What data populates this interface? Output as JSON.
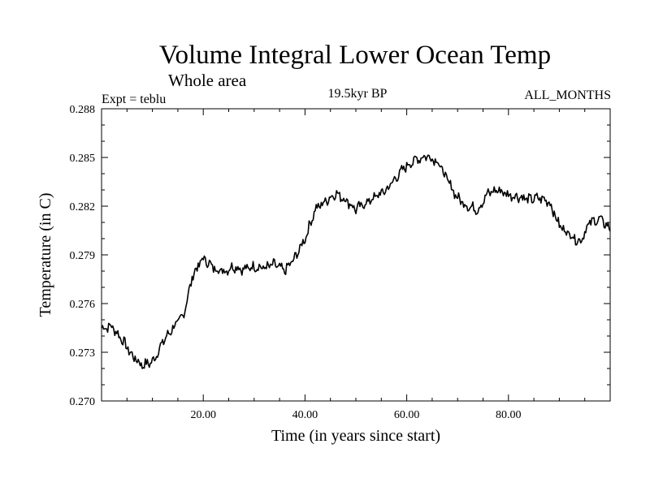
{
  "chart_data": {
    "type": "line",
    "title": "Volume Integral Lower Ocean Temp",
    "subtitle": "Whole area",
    "experiment_label": "Expt = teblu",
    "period_label": "19.5kyr BP",
    "months_label": "ALL_MONTHS",
    "xlabel": "Time (in years since start)",
    "ylabel": "Temperature (in C)",
    "xlim": [
      0,
      100
    ],
    "ylim": [
      0.27,
      0.288
    ],
    "xticks": [
      20,
      40,
      60,
      80
    ],
    "xtick_labels": [
      "20.00",
      "40.00",
      "60.00",
      "80.00"
    ],
    "yticks": [
      0.27,
      0.273,
      0.276,
      0.279,
      0.282,
      0.285,
      0.288
    ],
    "ytick_labels": [
      "0.270",
      "0.273",
      "0.276",
      "0.279",
      "0.282",
      "0.285",
      "0.288"
    ],
    "grid": false,
    "series": [
      {
        "name": "Volume integral lower ocean temperature",
        "x": [
          0,
          2,
          4,
          6,
          8,
          10,
          12,
          14,
          16,
          18,
          20,
          22,
          24,
          26,
          28,
          30,
          32,
          34,
          36,
          38,
          40,
          42,
          44,
          46,
          48,
          50,
          52,
          54,
          56,
          58,
          60,
          62,
          64,
          66,
          68,
          70,
          72,
          74,
          76,
          78,
          80,
          82,
          84,
          86,
          88,
          90,
          92,
          94,
          96,
          98,
          100
        ],
        "values": [
          0.2745,
          0.2746,
          0.2738,
          0.2728,
          0.2722,
          0.2724,
          0.2736,
          0.2745,
          0.2752,
          0.2778,
          0.2788,
          0.2782,
          0.278,
          0.2783,
          0.2781,
          0.2783,
          0.2782,
          0.2784,
          0.278,
          0.2788,
          0.28,
          0.2818,
          0.2823,
          0.2828,
          0.2824,
          0.2818,
          0.2822,
          0.2826,
          0.283,
          0.2838,
          0.2845,
          0.2849,
          0.2851,
          0.2848,
          0.2836,
          0.2825,
          0.282,
          0.2818,
          0.2828,
          0.283,
          0.2827,
          0.2826,
          0.2824,
          0.2825,
          0.2823,
          0.2808,
          0.2803,
          0.2798,
          0.281,
          0.2812,
          0.2806
        ]
      }
    ]
  }
}
